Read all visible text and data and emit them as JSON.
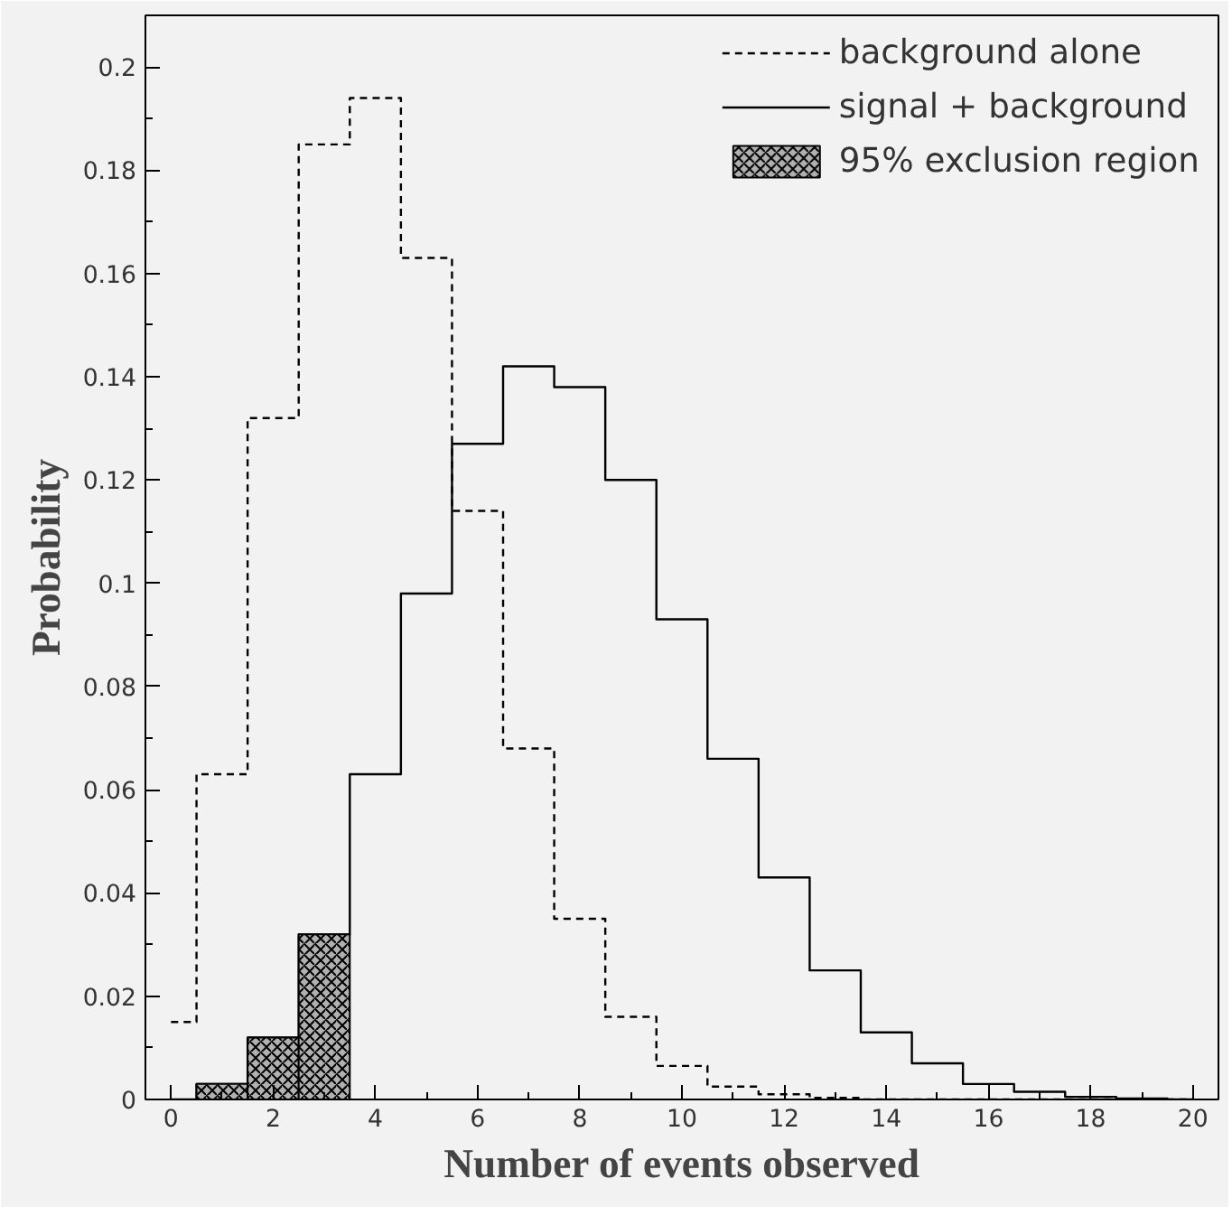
{
  "chart_data": {
    "type": "step",
    "xlabel": "Number of events observed",
    "ylabel": "Probability",
    "x": [
      0,
      1,
      2,
      3,
      4,
      5,
      6,
      7,
      8,
      9,
      10,
      11,
      12,
      13,
      14,
      15,
      16,
      17,
      18,
      19,
      20
    ],
    "series": [
      {
        "name": "background alone",
        "color": "#000000",
        "line_style": "dashed",
        "values": [
          0.015,
          0.063,
          0.132,
          0.185,
          0.194,
          0.163,
          0.114,
          0.068,
          0.035,
          0.016,
          0.0065,
          0.0025,
          0.001,
          0.0003,
          0,
          0,
          0,
          0,
          0,
          0,
          0
        ]
      },
      {
        "name": "signal + background",
        "color": "#000000",
        "line_style": "solid",
        "values": [
          0,
          0.003,
          0.012,
          0.032,
          0.063,
          0.098,
          0.127,
          0.142,
          0.138,
          0.12,
          0.093,
          0.066,
          0.043,
          0.025,
          0.013,
          0.007,
          0.003,
          0.0015,
          0.0005,
          0.0002,
          0
        ]
      },
      {
        "name": "95% exclusion region",
        "color": "#b0b0b0",
        "type": "bar",
        "x": [
          1,
          2,
          3
        ],
        "values": [
          0.003,
          0.012,
          0.032
        ]
      }
    ],
    "xlim": [
      -0.5,
      20.5
    ],
    "ylim": [
      0,
      0.21
    ],
    "xticks": [
      0,
      2,
      4,
      6,
      8,
      10,
      12,
      14,
      16,
      18,
      20
    ],
    "yticks": [
      0,
      0.02,
      0.04,
      0.06,
      0.08,
      0.1,
      0.12,
      0.14,
      0.16,
      0.18,
      0.2
    ],
    "legend": "top right",
    "grid": false
  }
}
